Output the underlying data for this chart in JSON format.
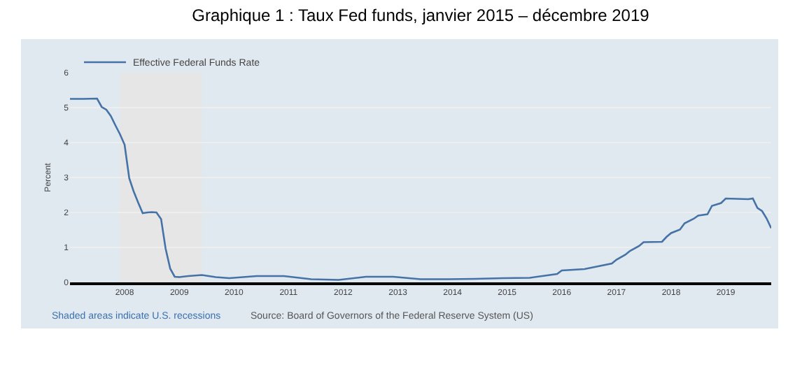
{
  "chart_data": {
    "type": "line",
    "title": "Graphique 1 : Taux Fed funds, janvier 2015 – décembre 2019",
    "ylabel": "Percent",
    "series": [
      {
        "name": "Effective Federal Funds Rate",
        "color": "#4572a7",
        "x": [
          "2007-01",
          "2007-04",
          "2007-07",
          "2007-08",
          "2007-09",
          "2007-10",
          "2007-11",
          "2007-12",
          "2008-01",
          "2008-02",
          "2008-03",
          "2008-04",
          "2008-05",
          "2008-06",
          "2008-07",
          "2008-08",
          "2008-09",
          "2008-10",
          "2008-11",
          "2008-12",
          "2009-01",
          "2009-03",
          "2009-06",
          "2009-09",
          "2009-12",
          "2010-06",
          "2010-12",
          "2011-06",
          "2011-12",
          "2012-06",
          "2012-12",
          "2013-06",
          "2013-12",
          "2014-06",
          "2014-12",
          "2015-06",
          "2015-12",
          "2016-01",
          "2016-06",
          "2016-12",
          "2017-01",
          "2017-03",
          "2017-04",
          "2017-06",
          "2017-07",
          "2017-11",
          "2017-12",
          "2018-01",
          "2018-03",
          "2018-04",
          "2018-06",
          "2018-07",
          "2018-09",
          "2018-10",
          "2018-12",
          "2019-01",
          "2019-06",
          "2019-07",
          "2019-08",
          "2019-09",
          "2019-10",
          "2019-11"
        ],
        "values": [
          5.25,
          5.25,
          5.26,
          5.02,
          4.94,
          4.76,
          4.49,
          4.24,
          3.94,
          2.98,
          2.61,
          2.28,
          1.98,
          2.0,
          2.01,
          2.0,
          1.81,
          0.97,
          0.39,
          0.16,
          0.15,
          0.18,
          0.21,
          0.15,
          0.12,
          0.18,
          0.18,
          0.09,
          0.07,
          0.16,
          0.16,
          0.09,
          0.09,
          0.1,
          0.12,
          0.13,
          0.24,
          0.34,
          0.38,
          0.54,
          0.65,
          0.79,
          0.9,
          1.04,
          1.15,
          1.16,
          1.3,
          1.41,
          1.51,
          1.69,
          1.82,
          1.91,
          1.95,
          2.19,
          2.27,
          2.4,
          2.38,
          2.4,
          2.13,
          2.04,
          1.83,
          1.55
        ]
      }
    ],
    "xlim": [
      "2007-01",
      "2019-11"
    ],
    "xticks": [
      "2008",
      "2009",
      "2010",
      "2011",
      "2012",
      "2013",
      "2014",
      "2015",
      "2016",
      "2017",
      "2018",
      "2019"
    ],
    "ylim": [
      0,
      6
    ],
    "yticks": [
      0,
      1,
      2,
      3,
      4,
      5,
      6
    ],
    "bands": [
      {
        "axis": "x",
        "from": "2007-12",
        "to": "2009-06",
        "color": "#e6e6e6"
      }
    ],
    "grid": "y",
    "legend": "top left",
    "line_style": "solid",
    "marker": "none",
    "annotations": [
      "Shaded areas indicate U.S. recessions",
      "Source: Board of Governors of the Federal Reserve System (US)"
    ]
  }
}
